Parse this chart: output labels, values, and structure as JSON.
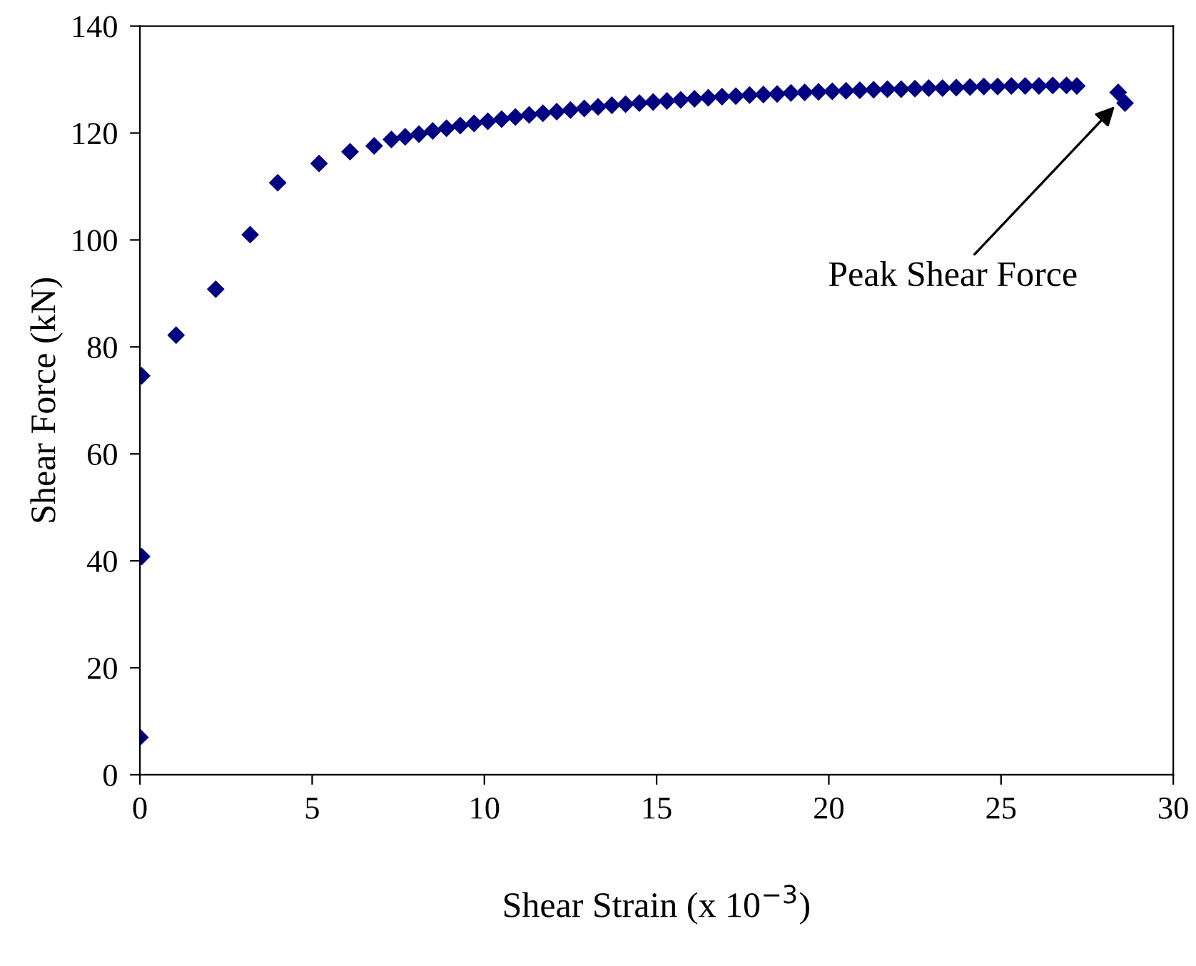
{
  "chart_data": {
    "type": "scatter",
    "xlabel": "Shear Strain (x 10$^{−3}$)",
    "ylabel": "Shear Force (kN)",
    "x": [
      0,
      0.05,
      0.05,
      1.05,
      2.2,
      3.2,
      4.0,
      5.2,
      6.1,
      6.8,
      7.3,
      7.7,
      8.1,
      8.5,
      8.9,
      9.3,
      9.7,
      10.1,
      10.5,
      10.9,
      11.3,
      11.7,
      12.1,
      12.5,
      12.9,
      13.3,
      13.7,
      14.1,
      14.5,
      14.9,
      15.3,
      15.7,
      16.1,
      16.5,
      16.9,
      17.3,
      17.7,
      18.1,
      18.5,
      18.9,
      19.3,
      19.7,
      20.1,
      20.5,
      20.9,
      21.3,
      21.7,
      22.1,
      22.5,
      22.9,
      23.3,
      23.7,
      24.1,
      24.5,
      24.9,
      25.3,
      25.7,
      26.1,
      26.5,
      26.9,
      27.2,
      28.4,
      28.6
    ],
    "series": [
      {
        "color": "#000080",
        "values": [
          7,
          40.8,
          74.6,
          82.2,
          90.8,
          101,
          110.7,
          114.3,
          116.5,
          117.6,
          118.8,
          119.3,
          119.8,
          120.4,
          120.9,
          121.4,
          121.8,
          122.2,
          122.6,
          123.0,
          123.4,
          123.7,
          124.0,
          124.3,
          124.6,
          124.9,
          125.2,
          125.4,
          125.6,
          125.8,
          126.0,
          126.2,
          126.4,
          126.6,
          126.8,
          126.9,
          127.1,
          127.2,
          127.3,
          127.5,
          127.6,
          127.7,
          127.8,
          127.9,
          128.0,
          128.1,
          128.2,
          128.2,
          128.3,
          128.4,
          128.4,
          128.5,
          128.6,
          128.7,
          128.7,
          128.8,
          128.8,
          128.8,
          128.9,
          128.9,
          128.8,
          127.6,
          125.6
        ]
      }
    ],
    "xlim": [
      0,
      30
    ],
    "xticks": [
      0,
      5,
      10,
      15,
      20,
      25,
      30
    ],
    "ylim": [
      0,
      140
    ],
    "yticks": [
      0,
      20,
      40,
      60,
      80,
      100,
      120,
      140
    ],
    "marker": "diamond",
    "grid": false,
    "legend": false,
    "annotations": [
      {
        "text": "Peak Shear Force",
        "x": 28.3,
        "y": 125
      }
    ]
  }
}
